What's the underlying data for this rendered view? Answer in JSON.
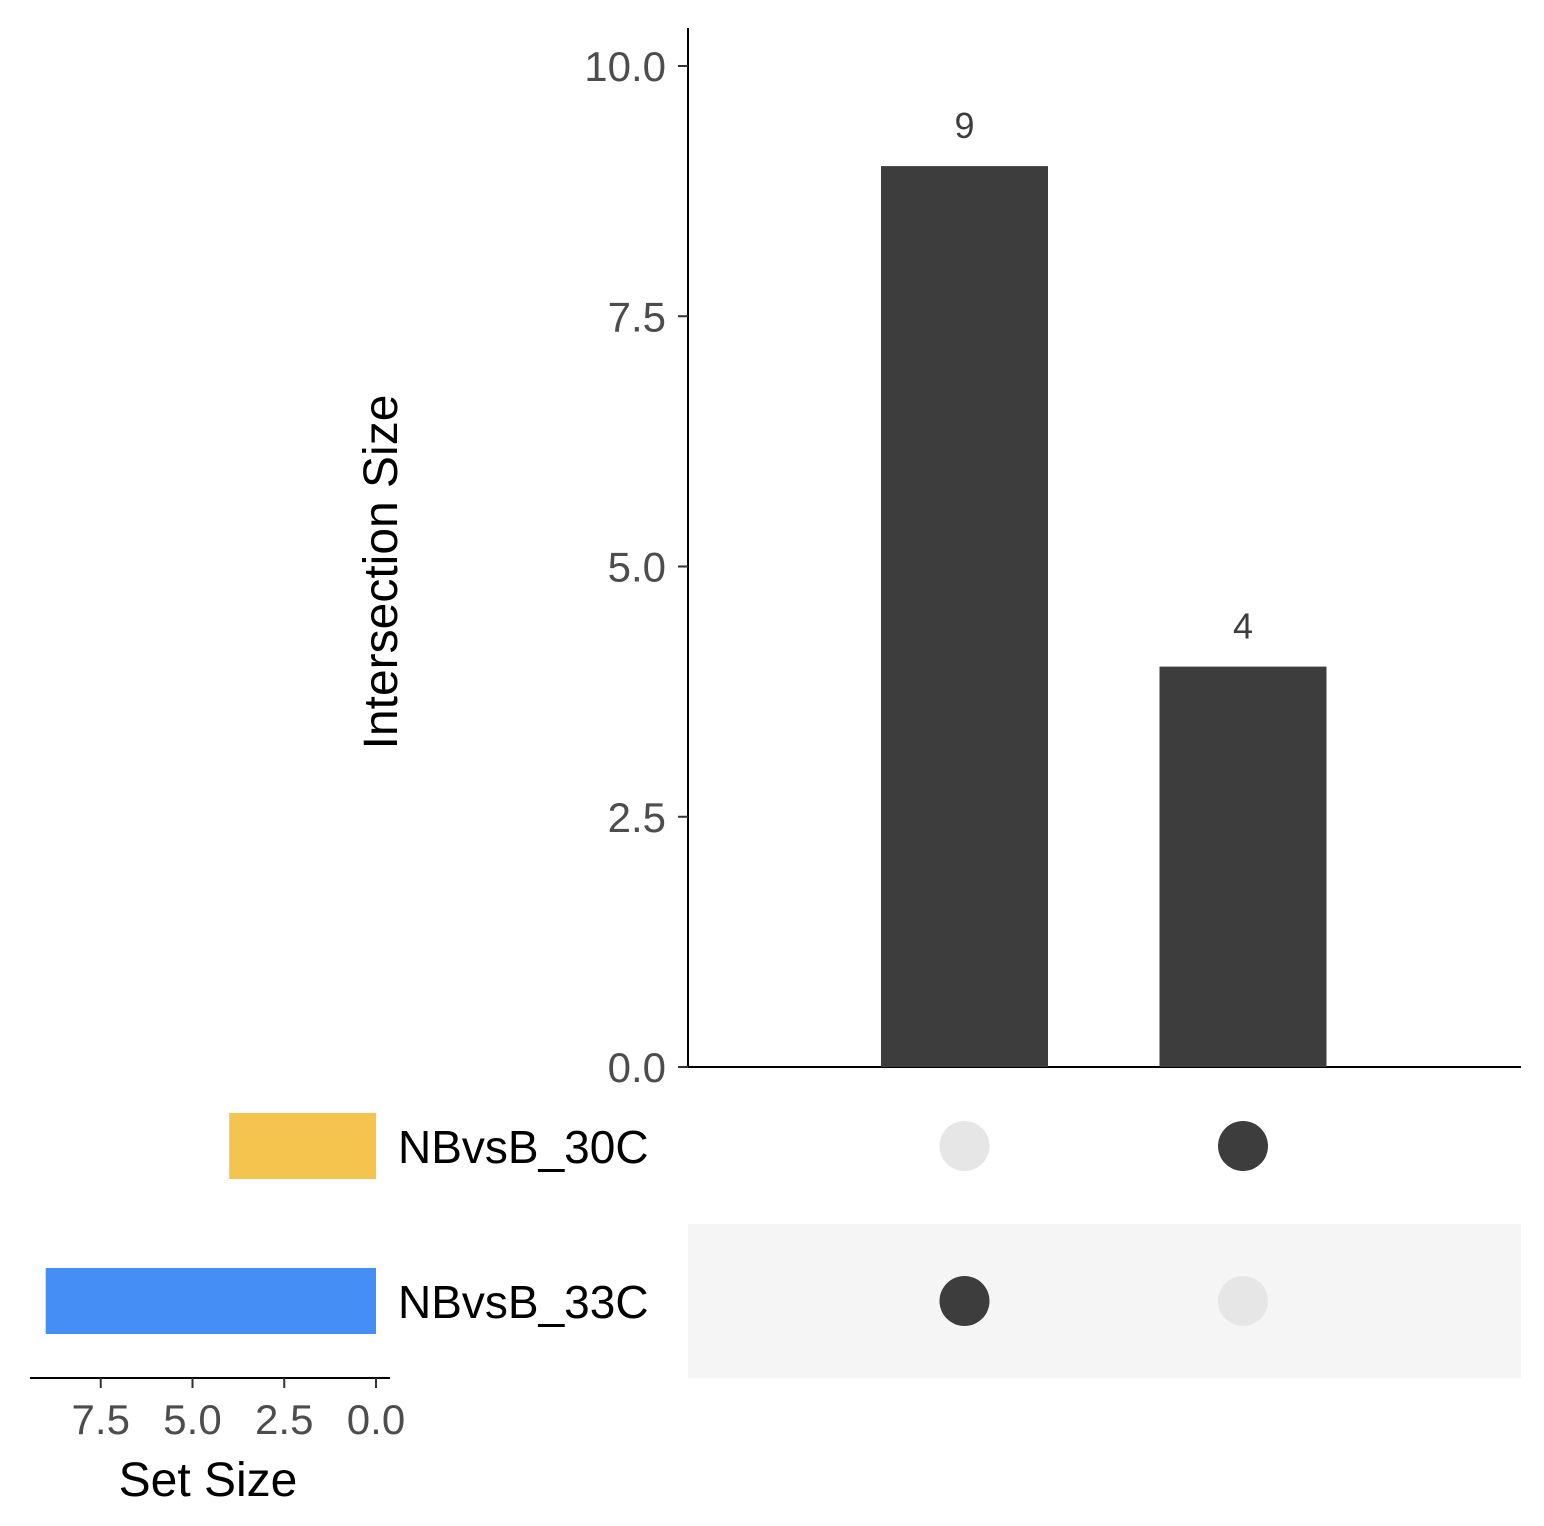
{
  "chart_data": {
    "type": "bar",
    "subtype": "upset",
    "ylabel": "Intersection Size",
    "ylim": [
      0,
      10
    ],
    "y_ticks": [
      "0.0",
      "2.5",
      "5.0",
      "7.5",
      "10.0"
    ],
    "intersections": [
      {
        "sets": [
          "NBvsB_33C"
        ],
        "value": 9,
        "label": "9"
      },
      {
        "sets": [
          "NBvsB_30C"
        ],
        "value": 4,
        "label": "4"
      }
    ],
    "sets": [
      {
        "name": "NBvsB_30C",
        "size": 4,
        "color": "#f4c44e"
      },
      {
        "name": "NBvsB_33C",
        "size": 9,
        "color": "#448ef6"
      }
    ],
    "set_size_axis": {
      "label": "Set Size",
      "ticks": [
        "7.5",
        "5.0",
        "2.5",
        "0.0"
      ],
      "direction": "reversed"
    },
    "colors": {
      "bar": "#3d3d3d",
      "dot_active": "#3d3d3d",
      "dot_inactive": "#e6e6e6",
      "stripe": "#f5f5f5"
    },
    "grid": false
  }
}
